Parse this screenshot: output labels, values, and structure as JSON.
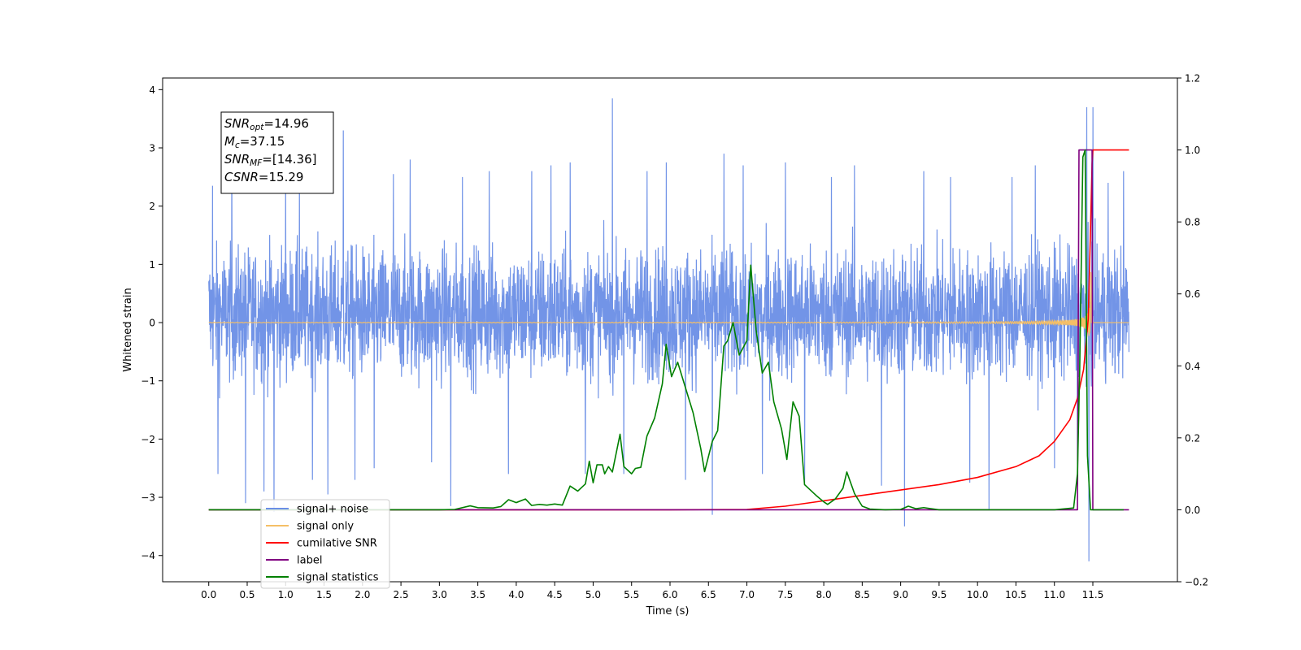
{
  "chart_data": {
    "type": "line",
    "xlabel": "Time (s)",
    "ylabel_left": "Whitened strain",
    "ylabel_right": "",
    "xlim": [
      -0.6,
      12.6
    ],
    "ylim_left": [
      -4.45,
      4.2
    ],
    "ylim_right": [
      -0.2,
      1.2
    ],
    "xticks": [
      0.0,
      0.5,
      1.0,
      1.5,
      2.0,
      2.5,
      3.0,
      3.5,
      4.0,
      4.5,
      5.0,
      5.5,
      6.0,
      6.5,
      7.0,
      7.5,
      8.0,
      8.5,
      9.0,
      9.5,
      10.0,
      10.5,
      11.0,
      11.5
    ],
    "xtick_labels": [
      "0.0",
      "0.5",
      "1.0",
      "1.5",
      "2.0",
      "2.5",
      "3.0",
      "3.5",
      "4.0",
      "4.5",
      "5.0",
      "5.5",
      "6.0",
      "6.5",
      "7.0",
      "7.5",
      "8.0",
      "8.5",
      "9.0",
      "9.5",
      "10.0",
      "10.5",
      "11.0",
      "11.5"
    ],
    "yticks_left": [
      -4,
      -3,
      -2,
      -1,
      0,
      1,
      2,
      3,
      4
    ],
    "ytick_labels_left": [
      "−4",
      "−3",
      "−2",
      "−1",
      "0",
      "1",
      "2",
      "3",
      "4"
    ],
    "yticks_right": [
      -0.2,
      0.0,
      0.2,
      0.4,
      0.6,
      0.8,
      1.0,
      1.2
    ],
    "ytick_labels_right": [
      "−0.2",
      "0.0",
      "0.2",
      "0.4",
      "0.6",
      "0.8",
      "1.0",
      "1.2"
    ],
    "grid": false,
    "legend_position": "lower-left",
    "annotation": {
      "lines": [
        {
          "sym": "SNR",
          "sub": "opt",
          "value": "=14.96"
        },
        {
          "sym": "M",
          "sub": "c",
          "value": "=37.15"
        },
        {
          "sym": "SNR",
          "sub": "MF",
          "value": "=[14.36]"
        },
        {
          "sym": "CSNR",
          "sub": "",
          "value": "=15.29"
        }
      ]
    },
    "series": [
      {
        "name": "signal+ noise",
        "color": "#6a8ee6",
        "axis": "left",
        "style": "noise",
        "x_range": [
          0.0,
          11.97
        ],
        "typical_envelope": [
          -1.6,
          1.9
        ],
        "spikes": [
          [
            0.05,
            2.35
          ],
          [
            0.12,
            -2.6
          ],
          [
            0.3,
            2.9
          ],
          [
            0.48,
            -3.1
          ],
          [
            0.72,
            -2.9
          ],
          [
            0.85,
            -3.25
          ],
          [
            1.0,
            2.7
          ],
          [
            1.18,
            2.5
          ],
          [
            1.35,
            -2.7
          ],
          [
            1.55,
            -2.95
          ],
          [
            1.75,
            3.3
          ],
          [
            1.9,
            -2.7
          ],
          [
            2.15,
            -2.5
          ],
          [
            2.4,
            2.55
          ],
          [
            2.62,
            2.8
          ],
          [
            2.9,
            -2.4
          ],
          [
            3.15,
            -3.15
          ],
          [
            3.3,
            2.5
          ],
          [
            3.65,
            2.6
          ],
          [
            3.9,
            -2.6
          ],
          [
            4.2,
            2.6
          ],
          [
            4.45,
            2.7
          ],
          [
            4.7,
            2.75
          ],
          [
            4.9,
            -2.6
          ],
          [
            5.25,
            3.85
          ],
          [
            5.4,
            -2.6
          ],
          [
            5.7,
            2.6
          ],
          [
            5.95,
            2.75
          ],
          [
            6.2,
            -2.7
          ],
          [
            6.55,
            -3.3
          ],
          [
            6.7,
            2.9
          ],
          [
            6.95,
            2.7
          ],
          [
            7.2,
            -2.6
          ],
          [
            7.5,
            2.75
          ],
          [
            7.75,
            -2.75
          ],
          [
            8.1,
            2.5
          ],
          [
            8.4,
            2.7
          ],
          [
            8.75,
            -2.8
          ],
          [
            9.05,
            -3.5
          ],
          [
            9.3,
            2.6
          ],
          [
            9.65,
            2.5
          ],
          [
            9.9,
            -2.75
          ],
          [
            10.15,
            -3.2
          ],
          [
            10.45,
            2.5
          ],
          [
            10.75,
            2.7
          ],
          [
            11.0,
            -2.5
          ],
          [
            11.3,
            -3.0
          ],
          [
            11.42,
            3.7
          ],
          [
            11.45,
            -4.1
          ],
          [
            11.5,
            3.7
          ],
          [
            11.7,
            2.4
          ],
          [
            11.9,
            2.6
          ]
        ]
      },
      {
        "name": "signal only",
        "color": "#f5bf66",
        "axis": "left",
        "style": "chirp",
        "x_range": [
          0.0,
          11.97
        ],
        "merger_time": 11.48,
        "peak_amplitude": 3.5
      },
      {
        "name": "cumilative SNR",
        "color": "#ff0000",
        "axis": "right",
        "points": [
          [
            0.0,
            0.0
          ],
          [
            6.0,
            0.0
          ],
          [
            7.0,
            0.001
          ],
          [
            7.5,
            0.01
          ],
          [
            8.0,
            0.025
          ],
          [
            8.5,
            0.04
          ],
          [
            9.0,
            0.055
          ],
          [
            9.5,
            0.07
          ],
          [
            10.0,
            0.09
          ],
          [
            10.5,
            0.12
          ],
          [
            10.8,
            0.15
          ],
          [
            11.0,
            0.19
          ],
          [
            11.2,
            0.25
          ],
          [
            11.3,
            0.31
          ],
          [
            11.38,
            0.39
          ],
          [
            11.44,
            0.53
          ],
          [
            11.47,
            0.78
          ],
          [
            11.49,
            0.96
          ],
          [
            11.5,
            1.0
          ],
          [
            11.97,
            1.0
          ]
        ]
      },
      {
        "name": "label",
        "color": "#800080",
        "axis": "right",
        "points": [
          [
            0.0,
            0.0
          ],
          [
            11.3,
            0.0
          ],
          [
            11.32,
            1.0
          ],
          [
            11.49,
            1.0
          ],
          [
            11.5,
            0.0
          ],
          [
            11.97,
            0.0
          ]
        ]
      },
      {
        "name": "signal statistics",
        "color": "#008000",
        "axis": "right",
        "points": [
          [
            0.0,
            0.0
          ],
          [
            3.0,
            0.0
          ],
          [
            3.2,
            0.001
          ],
          [
            3.4,
            0.011
          ],
          [
            3.5,
            0.006
          ],
          [
            3.7,
            0.005
          ],
          [
            3.8,
            0.009
          ],
          [
            3.9,
            0.028
          ],
          [
            4.0,
            0.02
          ],
          [
            4.12,
            0.03
          ],
          [
            4.2,
            0.012
          ],
          [
            4.3,
            0.015
          ],
          [
            4.4,
            0.013
          ],
          [
            4.5,
            0.016
          ],
          [
            4.6,
            0.013
          ],
          [
            4.7,
            0.066
          ],
          [
            4.8,
            0.052
          ],
          [
            4.9,
            0.072
          ],
          [
            4.95,
            0.135
          ],
          [
            5.0,
            0.075
          ],
          [
            5.05,
            0.125
          ],
          [
            5.12,
            0.125
          ],
          [
            5.15,
            0.1
          ],
          [
            5.2,
            0.12
          ],
          [
            5.25,
            0.105
          ],
          [
            5.35,
            0.21
          ],
          [
            5.4,
            0.12
          ],
          [
            5.5,
            0.1
          ],
          [
            5.55,
            0.115
          ],
          [
            5.62,
            0.118
          ],
          [
            5.7,
            0.205
          ],
          [
            5.8,
            0.255
          ],
          [
            5.9,
            0.35
          ],
          [
            5.95,
            0.46
          ],
          [
            6.02,
            0.37
          ],
          [
            6.1,
            0.41
          ],
          [
            6.2,
            0.34
          ],
          [
            6.3,
            0.27
          ],
          [
            6.4,
            0.17
          ],
          [
            6.45,
            0.106
          ],
          [
            6.55,
            0.19
          ],
          [
            6.62,
            0.22
          ],
          [
            6.7,
            0.455
          ],
          [
            6.75,
            0.47
          ],
          [
            6.82,
            0.52
          ],
          [
            6.9,
            0.43
          ],
          [
            7.0,
            0.47
          ],
          [
            7.05,
            0.68
          ],
          [
            7.12,
            0.5
          ],
          [
            7.2,
            0.38
          ],
          [
            7.28,
            0.41
          ],
          [
            7.35,
            0.3
          ],
          [
            7.45,
            0.225
          ],
          [
            7.52,
            0.14
          ],
          [
            7.6,
            0.3
          ],
          [
            7.68,
            0.26
          ],
          [
            7.75,
            0.07
          ],
          [
            7.9,
            0.04
          ],
          [
            8.0,
            0.022
          ],
          [
            8.05,
            0.015
          ],
          [
            8.15,
            0.03
          ],
          [
            8.25,
            0.06
          ],
          [
            8.3,
            0.105
          ],
          [
            8.4,
            0.045
          ],
          [
            8.5,
            0.01
          ],
          [
            8.6,
            0.002
          ],
          [
            8.8,
            0.0
          ],
          [
            9.0,
            0.001
          ],
          [
            9.1,
            0.01
          ],
          [
            9.2,
            0.003
          ],
          [
            9.3,
            0.006
          ],
          [
            9.5,
            0.0
          ],
          [
            11.0,
            0.0
          ],
          [
            11.25,
            0.005
          ],
          [
            11.3,
            0.1
          ],
          [
            11.33,
            0.4
          ],
          [
            11.37,
            0.98
          ],
          [
            11.4,
            1.0
          ],
          [
            11.43,
            0.15
          ],
          [
            11.47,
            0.0
          ],
          [
            11.9,
            0.0
          ]
        ]
      }
    ]
  }
}
